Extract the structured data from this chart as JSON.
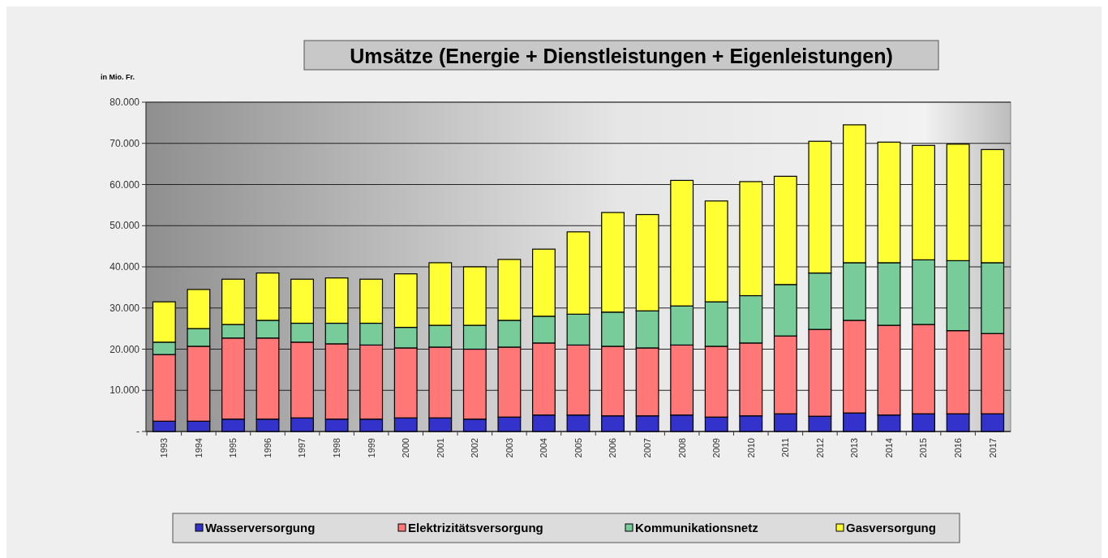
{
  "chart_data": {
    "type": "bar",
    "title": "Umsätze (Energie + Dienstleistungen + Eigenleistungen)",
    "ylabel": "in Mio. Fr.",
    "categories": [
      "1993",
      "1994",
      "1995",
      "1996",
      "1997",
      "1998",
      "1999",
      "2000",
      "2001",
      "2002",
      "2003",
      "2004",
      "2005",
      "2006",
      "2007",
      "2008",
      "2009",
      "2010",
      "2011",
      "2012",
      "2013",
      "2014",
      "2015",
      "2016",
      "2017"
    ],
    "stacked": true,
    "series": [
      {
        "name": "Wasserversorgung",
        "color": "#3333cc",
        "values": [
          2500,
          2500,
          3000,
          3000,
          3300,
          3000,
          3000,
          3300,
          3300,
          3000,
          3500,
          4000,
          4000,
          3800,
          3800,
          4000,
          3500,
          3800,
          4300,
          3700,
          4500,
          4000,
          4300,
          4300,
          4300
        ]
      },
      {
        "name": "Elektrizitätsversorgung",
        "color": "#ff7777",
        "values": [
          16200,
          18200,
          19700,
          19700,
          18400,
          18300,
          18000,
          17000,
          17200,
          17000,
          17000,
          17500,
          17000,
          16900,
          16500,
          17000,
          17200,
          17700,
          18900,
          21100,
          22500,
          21800,
          21700,
          20200,
          19500
        ]
      },
      {
        "name": "Kommunikationsnetz",
        "color": "#77cc99",
        "values": [
          3000,
          4300,
          3300,
          4300,
          4600,
          5000,
          5300,
          5000,
          5300,
          5800,
          6500,
          6500,
          7500,
          8300,
          9000,
          9500,
          10800,
          11500,
          12500,
          13700,
          14000,
          15200,
          15700,
          17000,
          17200
        ]
      },
      {
        "name": "Gasversorgung",
        "color": "#ffff33",
        "values": [
          9800,
          9500,
          11000,
          11500,
          10700,
          11000,
          10700,
          13000,
          15200,
          14200,
          14800,
          16300,
          20000,
          24200,
          23400,
          30500,
          24500,
          27700,
          26300,
          32000,
          33500,
          29300,
          27800,
          28300,
          27500
        ]
      }
    ],
    "ylim": [
      0,
      80000
    ],
    "yticks": [
      {
        "value": 0,
        "label": "-"
      },
      {
        "value": 10000,
        "label": "10.000"
      },
      {
        "value": 20000,
        "label": "20.000"
      },
      {
        "value": 30000,
        "label": "30.000"
      },
      {
        "value": 40000,
        "label": "40.000"
      },
      {
        "value": 50000,
        "label": "50.000"
      },
      {
        "value": 60000,
        "label": "60.000"
      },
      {
        "value": 70000,
        "label": "70.000"
      },
      {
        "value": 80000,
        "label": "80.000"
      }
    ],
    "grid": "y",
    "legend": "bottom"
  }
}
